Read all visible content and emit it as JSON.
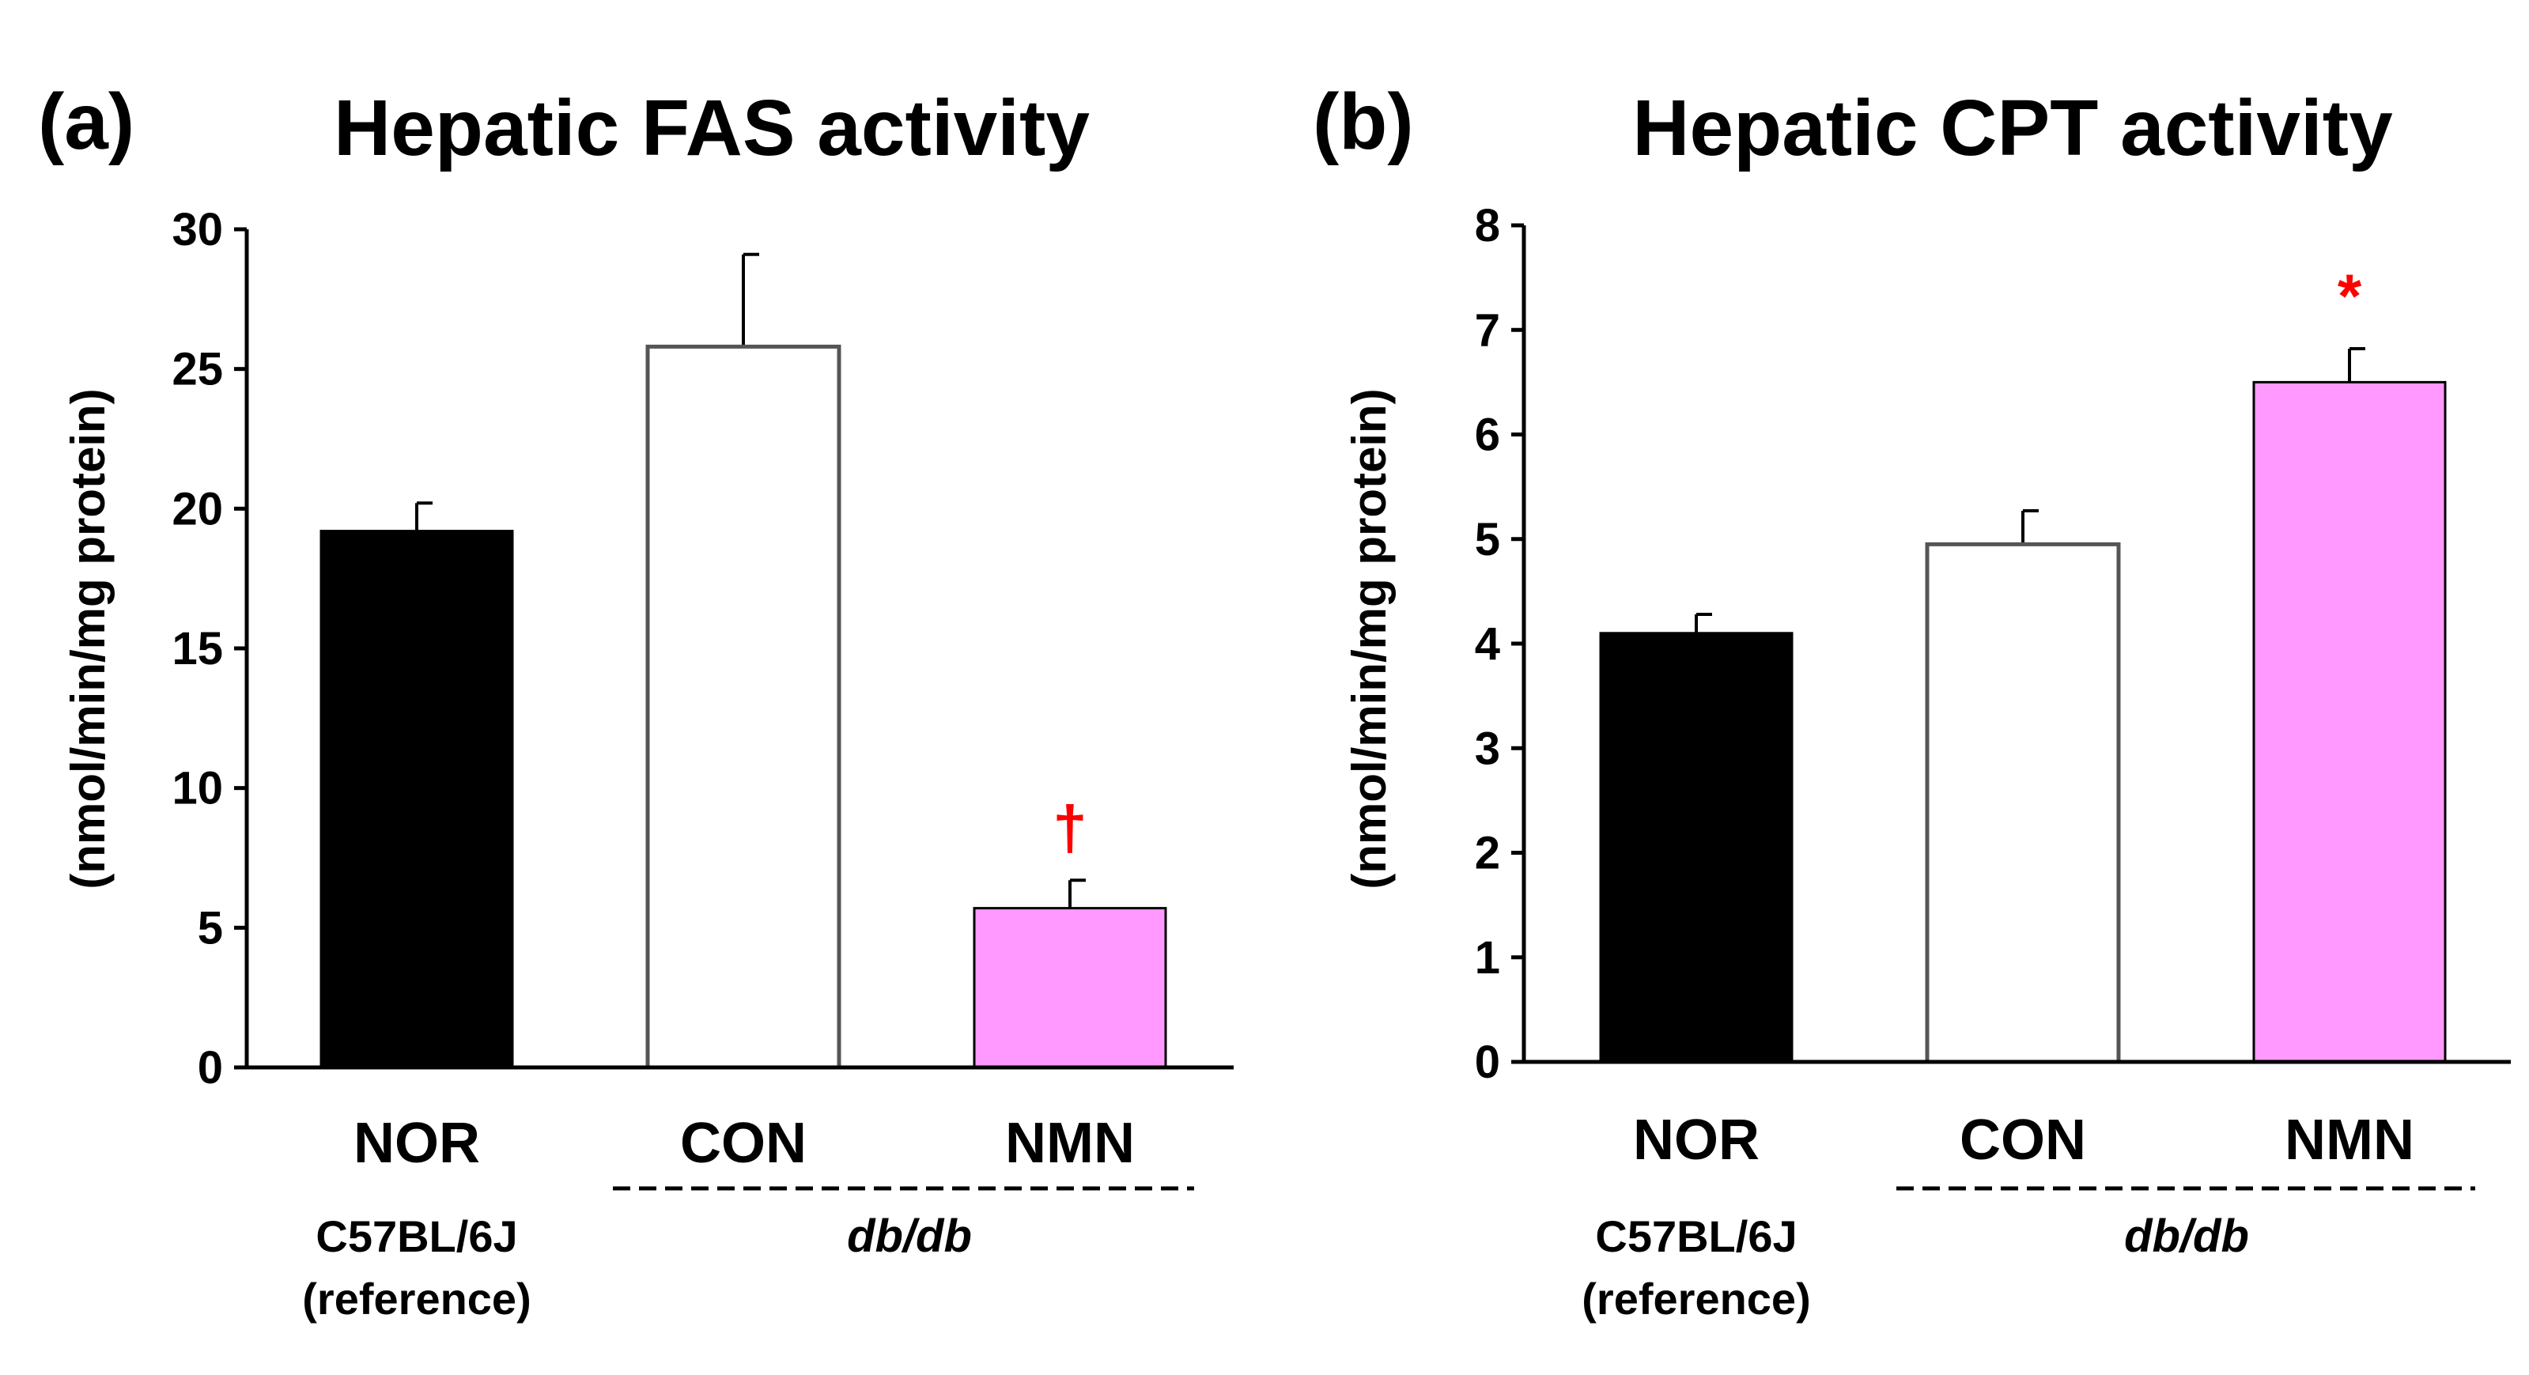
{
  "chart_data": [
    {
      "panel_label": "(a)",
      "type": "bar",
      "title": "Hepatic FAS activity",
      "ylabel": "(nmol/min/mg protein)",
      "ylim": [
        0,
        30
      ],
      "yticks": [
        0,
        5,
        10,
        15,
        20,
        25,
        30
      ],
      "categories": [
        "NOR",
        "CON",
        "NMN"
      ],
      "values": [
        19.2,
        25.8,
        5.7
      ],
      "errors": [
        1.0,
        3.3,
        1.0
      ],
      "colors": [
        "#000000",
        "#ffffff",
        "#ff99ff"
      ],
      "significance": [
        "",
        "",
        "†"
      ],
      "annotations": {
        "strain_label": "C57BL/6J",
        "reference_label": "(reference)",
        "group_label": "db/db"
      }
    },
    {
      "panel_label": "(b)",
      "type": "bar",
      "title": "Hepatic CPT activity",
      "ylabel": "(nmol/min/mg protein)",
      "ylim": [
        0,
        8
      ],
      "yticks": [
        0,
        1,
        2,
        3,
        4,
        5,
        6,
        7,
        8
      ],
      "categories": [
        "NOR",
        "CON",
        "NMN"
      ],
      "values": [
        4.1,
        4.95,
        6.5
      ],
      "errors": [
        0.18,
        0.32,
        0.32
      ],
      "colors": [
        "#000000",
        "#ffffff",
        "#ff99ff"
      ],
      "significance": [
        "",
        "",
        "*"
      ],
      "annotations": {
        "strain_label": "C57BL/6J",
        "reference_label": "(reference)",
        "group_label": "db/db"
      }
    }
  ]
}
